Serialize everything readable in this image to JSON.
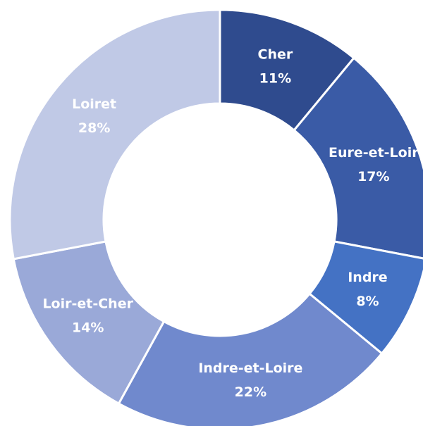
{
  "chart_data": {
    "type": "donut",
    "categories": [
      "Cher",
      "Eure-et-Loir",
      "Indre",
      "Indre-et-Loire",
      "Loir-et-Cher",
      "Loiret"
    ],
    "values": [
      11,
      17,
      8,
      22,
      14,
      28
    ],
    "value_labels": [
      "11%",
      "17%",
      "8%",
      "22%",
      "14%",
      "28%"
    ],
    "colors": [
      "#2f4b8e",
      "#3a5ba6",
      "#4472c4",
      "#7089cd",
      "#9aa9d8",
      "#c0c9e6"
    ]
  }
}
